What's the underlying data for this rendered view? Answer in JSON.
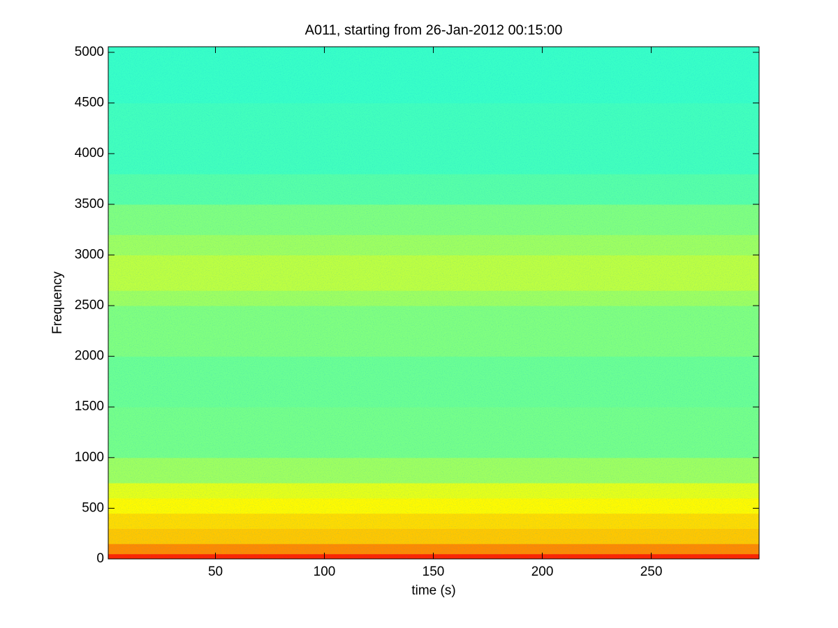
{
  "chart_data": {
    "type": "spectrogram",
    "title": "A011, starting from 26-Jan-2012 00:15:00",
    "x_label": "time (s)",
    "y_label": "Frequency",
    "colormap": "jet",
    "xlim": [
      0.8,
      299.5
    ],
    "ylim": [
      0,
      5055
    ],
    "xticks": [
      50,
      100,
      150,
      200,
      250
    ],
    "yticks": [
      0,
      500,
      1000,
      1500,
      2000,
      2500,
      3000,
      3500,
      4000,
      4500,
      5000
    ],
    "bands": [
      0,
      50,
      150,
      300,
      450,
      600,
      750,
      1000,
      1500,
      2000,
      2500,
      2650,
      3000,
      3200,
      3500,
      3800,
      4500,
      5055
    ],
    "levels": [
      0.84,
      0.74,
      0.68,
      0.66,
      0.63,
      0.6,
      0.53,
      0.49,
      0.48,
      0.5,
      0.53,
      0.56,
      0.53,
      0.5,
      0.46,
      0.44,
      0.43
    ]
  }
}
